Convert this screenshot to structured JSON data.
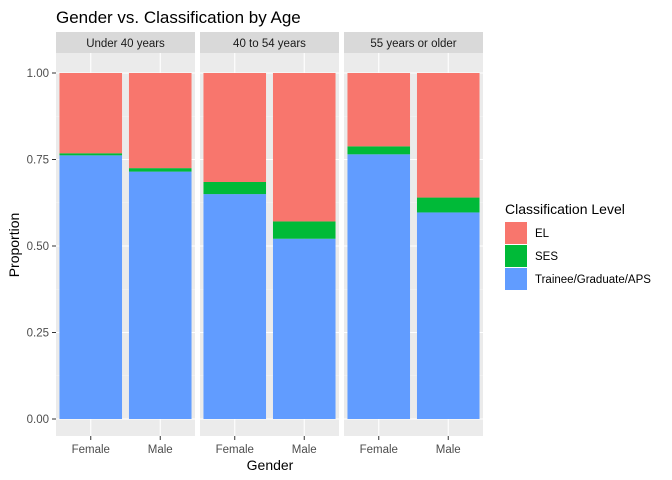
{
  "chart_data": {
    "type": "bar",
    "stacked": true,
    "title": "Gender vs. Classification by Age",
    "xlabel": "Gender",
    "ylabel": "Proportion",
    "ylim": [
      0,
      1
    ],
    "yticks": [
      "0.00",
      "0.25",
      "0.50",
      "0.75",
      "1.00"
    ],
    "grid": true,
    "legend": {
      "title": "Classification Level",
      "placement": "right",
      "entries": [
        {
          "name": "EL",
          "color": "#F8766D"
        },
        {
          "name": "SES",
          "color": "#00BA38"
        },
        {
          "name": "Trainee/Graduate/APS",
          "color": "#619CFF"
        }
      ]
    },
    "facets": [
      {
        "label": "Under 40 years",
        "categories": [
          "Female",
          "Male"
        ],
        "series": [
          {
            "name": "Trainee/Graduate/APS",
            "values": [
              0.762,
              0.715
            ]
          },
          {
            "name": "SES",
            "values": [
              0.006,
              0.01
            ]
          },
          {
            "name": "EL",
            "values": [
              0.232,
              0.275
            ]
          }
        ]
      },
      {
        "label": "40 to 54 years",
        "categories": [
          "Female",
          "Male"
        ],
        "series": [
          {
            "name": "Trainee/Graduate/APS",
            "values": [
              0.65,
              0.521
            ]
          },
          {
            "name": "SES",
            "values": [
              0.035,
              0.05
            ]
          },
          {
            "name": "EL",
            "values": [
              0.315,
              0.429
            ]
          }
        ]
      },
      {
        "label": "55 years or older",
        "categories": [
          "Female",
          "Male"
        ],
        "series": [
          {
            "name": "Trainee/Graduate/APS",
            "values": [
              0.765,
              0.597
            ]
          },
          {
            "name": "SES",
            "values": [
              0.023,
              0.043
            ]
          },
          {
            "name": "EL",
            "values": [
              0.212,
              0.36
            ]
          }
        ]
      }
    ]
  }
}
